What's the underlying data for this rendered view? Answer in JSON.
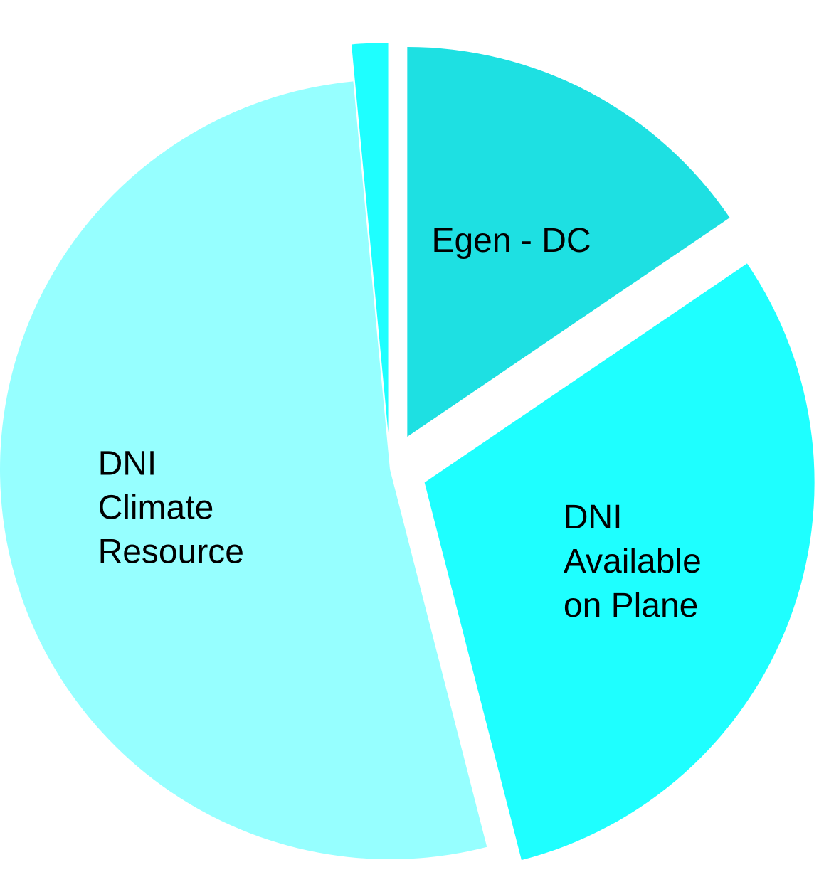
{
  "chart_data": {
    "type": "pie",
    "title": "",
    "categories": [
      "Egen - DC",
      "DNI Available on Plane",
      "DNI Climate Resource",
      ""
    ],
    "values": [
      15.5,
      30.5,
      52.5,
      1.5
    ],
    "slices": [
      {
        "label_lines": [
          "Egen - DC"
        ],
        "value": 15.5,
        "color": "#1ee0e2",
        "exploded": true
      },
      {
        "label_lines": [
          "DNI",
          "Available",
          "on Plane"
        ],
        "value": 30.5,
        "color": "#1effff",
        "exploded": true
      },
      {
        "label_lines": [
          "DNI",
          "Climate",
          "Resource"
        ],
        "value": 52.5,
        "color": "#96ffff",
        "exploded": false
      },
      {
        "label_lines": [],
        "value": 1.5,
        "color": "#1effff",
        "exploded": true
      }
    ],
    "start_angle_deg": 0,
    "direction": "clockwise",
    "legend": "none"
  }
}
